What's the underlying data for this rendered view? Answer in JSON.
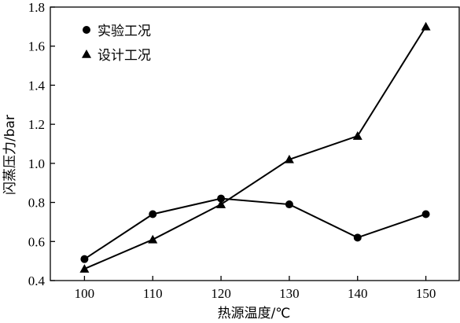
{
  "chart_data": {
    "type": "line",
    "xlabel": "热源温度/℃",
    "ylabel": "闪蒸压力/bar",
    "x": [
      100,
      110,
      120,
      130,
      140,
      150
    ],
    "xticks": [
      "100",
      "110",
      "120",
      "130",
      "140",
      "150"
    ],
    "xlim": [
      95,
      155
    ],
    "ylim": [
      0.4,
      1.8
    ],
    "yticks": [
      "0.4",
      "0.6",
      "0.8",
      "1.0",
      "1.2",
      "1.4",
      "1.6",
      "1.8"
    ],
    "grid": false,
    "legend_position": "top-left",
    "series": [
      {
        "name": "实验工况",
        "marker": "circle",
        "values": [
          0.51,
          0.74,
          0.82,
          0.79,
          0.62,
          0.74
        ]
      },
      {
        "name": "设计工况",
        "marker": "triangle",
        "values": [
          0.46,
          0.61,
          0.79,
          1.02,
          1.14,
          1.7
        ]
      }
    ]
  }
}
